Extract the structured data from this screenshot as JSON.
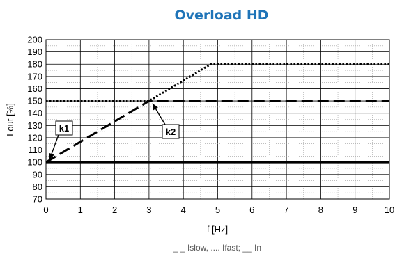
{
  "chart_data": {
    "type": "line",
    "title": "Overload HD",
    "xlabel": "f [Hz]",
    "ylabel": "I out [%]",
    "caption": "_ _ Islow, .... Ifast; __ In",
    "xlim": [
      0,
      10
    ],
    "ylim": [
      70,
      200
    ],
    "xticks": [
      0,
      1,
      2,
      3,
      4,
      5,
      6,
      7,
      8,
      9,
      10
    ],
    "yticks": [
      70,
      80,
      90,
      100,
      110,
      120,
      130,
      140,
      150,
      160,
      170,
      180,
      190,
      200
    ],
    "grid": "dotted",
    "series": [
      {
        "name": "Islow",
        "style": "dashed",
        "x": [
          0,
          3,
          10
        ],
        "y": [
          100,
          150,
          150
        ]
      },
      {
        "name": "Ifast",
        "style": "dotted",
        "x": [
          0,
          3,
          4.8,
          10
        ],
        "y": [
          150,
          150,
          180,
          180
        ]
      },
      {
        "name": "In",
        "style": "solid",
        "x": [
          0,
          10
        ],
        "y": [
          100,
          100
        ]
      }
    ],
    "annotations": [
      {
        "label": "k1",
        "point": [
          0.1,
          102
        ]
      },
      {
        "label": "k2",
        "point": [
          3.1,
          148
        ]
      }
    ],
    "colors": {
      "title": "#1f74b8",
      "lines": "#000000",
      "grid": "#999999"
    }
  }
}
